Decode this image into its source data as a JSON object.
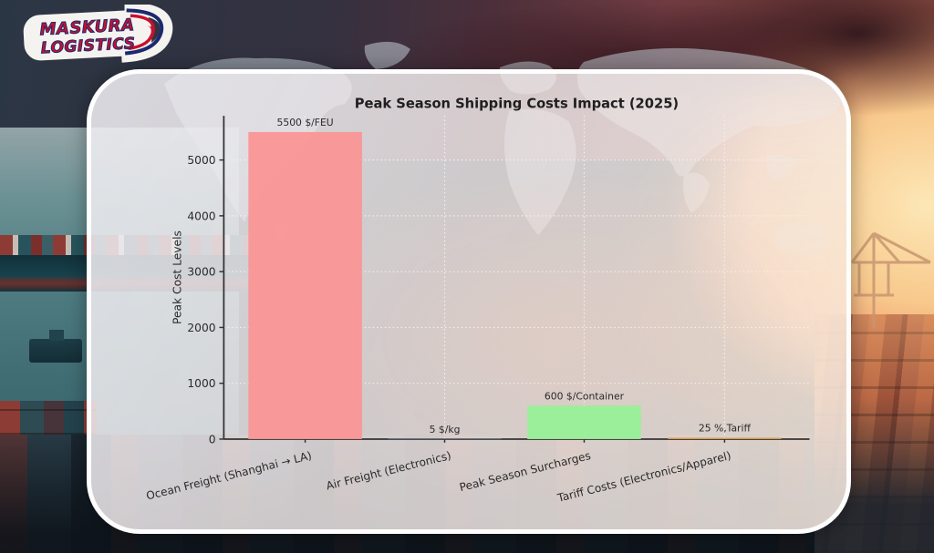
{
  "logo": {
    "line1": "MASKURA",
    "line2": "LOGISTICS"
  },
  "chart_data": {
    "type": "bar",
    "title": "Peak Season Shipping Costs Impact (2025)",
    "xlabel": "",
    "ylabel": "Peak Cost Levels",
    "categories": [
      "Ocean Freight (Shanghai → LA)",
      "Air Freight (Electronics)",
      "Peak Season Surcharges",
      "Tariff Costs (Electronics/Apparel)"
    ],
    "values": [
      5500,
      5,
      600,
      25
    ],
    "bar_labels": [
      "5500 $/FEU",
      "5 $/kg",
      "600 $/Container",
      "25 %,Tariff"
    ],
    "bar_colors": [
      "#fa9595",
      "#9ec5e8",
      "#98ef98",
      "#dfa04d"
    ],
    "yticks": [
      0,
      1000,
      2000,
      3000,
      4000,
      5000
    ],
    "ylim": [
      0,
      5800
    ],
    "grid": "dotted horizontal and vertical gridlines",
    "legend": "none",
    "x_tick_label_rotation_deg": -14
  },
  "colors": {
    "text": "#2a2a2a",
    "axis": "#333333",
    "grid": "#f4f1ee"
  }
}
